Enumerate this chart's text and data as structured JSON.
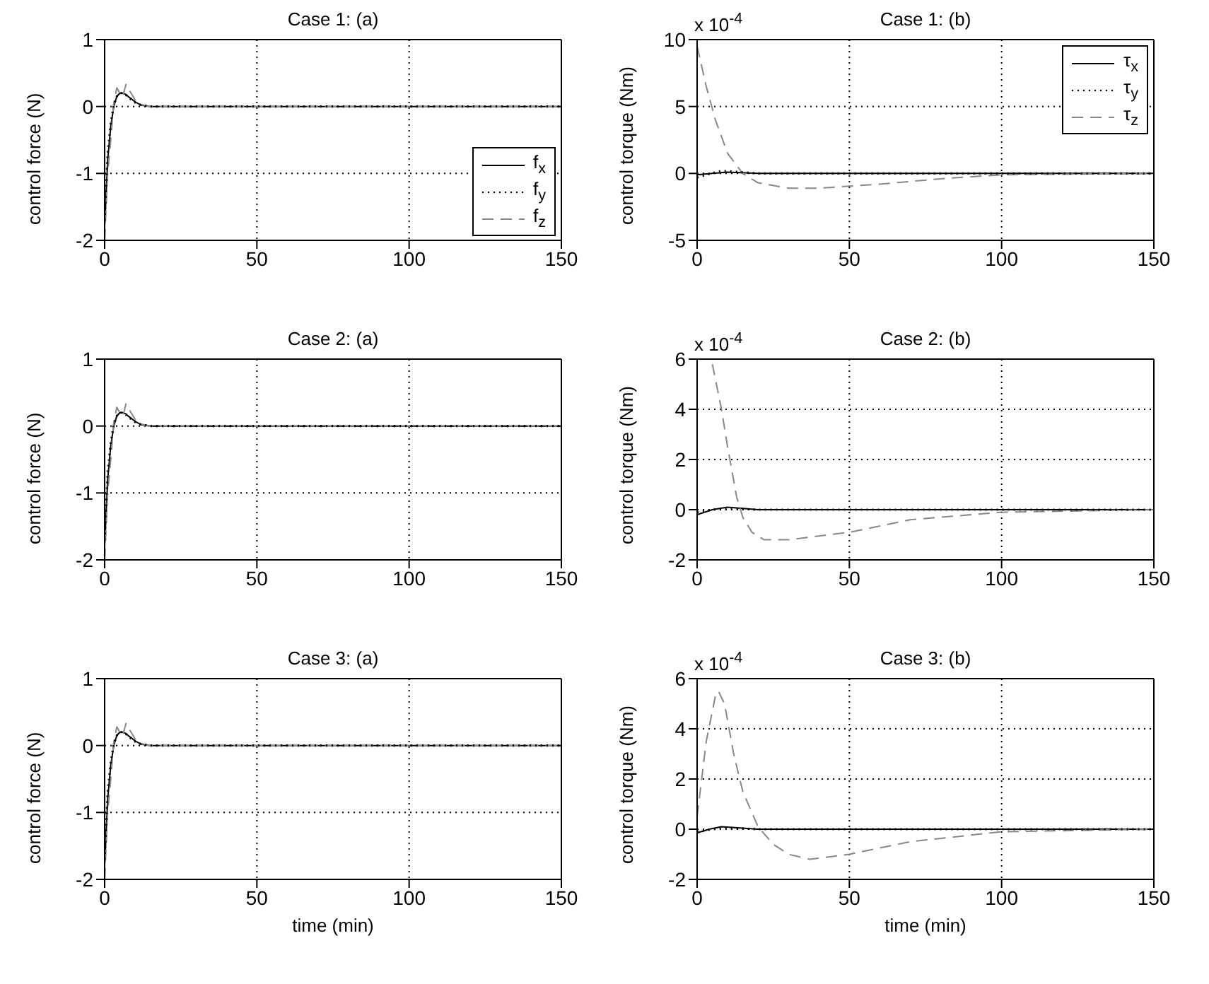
{
  "chart_data": [
    {
      "type": "line",
      "title": "Case 1: (a)",
      "ylabel": "control force (N)",
      "xlim": [
        0,
        150
      ],
      "xticks": [
        0,
        50,
        100,
        150
      ],
      "ylim": [
        -2,
        1
      ],
      "yticks": [
        -2,
        -1,
        0,
        1
      ],
      "grid": true,
      "legend": "right",
      "marker": "none",
      "series": [
        {
          "name": "f$_{x}$",
          "color": "#000000",
          "line_style": "solid",
          "x": [
            0,
            1,
            2,
            3,
            4,
            5,
            6,
            7,
            8,
            10,
            12,
            15,
            20,
            30,
            150
          ],
          "values": [
            -1.8,
            -0.8,
            -0.3,
            0,
            0.15,
            0.2,
            0.2,
            0.18,
            0.14,
            0.07,
            0.02,
            0,
            0,
            0,
            0
          ]
        },
        {
          "name": "f$_{y}$",
          "color": "#000000",
          "line_style": "dotted",
          "x": [
            0,
            1,
            2,
            3,
            4,
            5,
            6,
            7,
            8,
            10,
            12,
            15,
            20,
            30,
            150
          ],
          "values": [
            -1.7,
            -0.7,
            -0.25,
            0.02,
            0.15,
            0.2,
            0.2,
            0.17,
            0.13,
            0.06,
            0.02,
            0,
            0,
            0,
            0
          ]
        },
        {
          "name": "f$_{z}$",
          "color": "#888888",
          "line_style": "dashed",
          "x": [
            0,
            1,
            2,
            3,
            4,
            5,
            6,
            7,
            8,
            10,
            12,
            15,
            20,
            30,
            150
          ],
          "values": [
            -2,
            -1,
            -0.5,
            0.05,
            0.28,
            0.2,
            0.15,
            0.33,
            0.25,
            0.1,
            0.03,
            0,
            0,
            0,
            0
          ]
        }
      ]
    },
    {
      "type": "line",
      "title": "Case 1: (b)",
      "ylabel": "control torque (Nm)",
      "annotations": [
        "x 10$^{-4}$"
      ],
      "xlim": [
        0,
        150
      ],
      "xticks": [
        0,
        50,
        100,
        150
      ],
      "ylim": [
        -5,
        10
      ],
      "yticks": [
        -5,
        0,
        5,
        10
      ],
      "grid": true,
      "legend": "top right",
      "marker": "none",
      "series": [
        {
          "name": "τ$_{x}$",
          "color": "#000000",
          "line_style": "solid",
          "x": [
            0,
            5,
            10,
            20,
            150
          ],
          "values": [
            -0.1,
            0,
            0.1,
            0,
            0
          ]
        },
        {
          "name": "τ$_{y}$",
          "color": "#000000",
          "line_style": "dotted",
          "x": [
            0,
            8,
            20,
            150
          ],
          "values": [
            -0.3,
            0.2,
            0,
            0
          ]
        },
        {
          "name": "τ$_{z}$",
          "color": "#888888",
          "line_style": "dashed",
          "x": [
            0,
            3,
            6,
            10,
            15,
            20,
            30,
            40,
            60,
            80,
            100,
            150
          ],
          "values": [
            9.5,
            6.5,
            4,
            1.5,
            0,
            -0.7,
            -1.1,
            -1.1,
            -0.8,
            -0.4,
            -0.1,
            0
          ]
        }
      ]
    },
    {
      "type": "line",
      "title": "Case 2: (a)",
      "ylabel": "control force (N)",
      "xlim": [
        0,
        150
      ],
      "xticks": [
        0,
        50,
        100,
        150
      ],
      "ylim": [
        -2,
        1
      ],
      "yticks": [
        -2,
        -1,
        0,
        1
      ],
      "grid": true,
      "marker": "none",
      "series": [
        {
          "color": "#000000",
          "line_style": "solid",
          "x": [
            0,
            1,
            2,
            3,
            4,
            5,
            6,
            7,
            8,
            10,
            12,
            15,
            20,
            30,
            150
          ],
          "values": [
            -1.8,
            -0.8,
            -0.3,
            0,
            0.15,
            0.2,
            0.2,
            0.18,
            0.14,
            0.07,
            0.02,
            0,
            0,
            0,
            0
          ]
        },
        {
          "color": "#000000",
          "line_style": "dotted",
          "x": [
            0,
            1,
            2,
            3,
            4,
            5,
            6,
            7,
            8,
            10,
            12,
            15,
            20,
            30,
            150
          ],
          "values": [
            -1.7,
            -0.7,
            -0.25,
            0.02,
            0.15,
            0.2,
            0.2,
            0.17,
            0.13,
            0.06,
            0.02,
            0,
            0,
            0,
            0
          ]
        },
        {
          "color": "#888888",
          "line_style": "dashed",
          "x": [
            0,
            1,
            2,
            3,
            4,
            5,
            6,
            7,
            8,
            10,
            12,
            15,
            20,
            30,
            150
          ],
          "values": [
            -2,
            -1,
            -0.5,
            0.05,
            0.28,
            0.2,
            0.15,
            0.33,
            0.25,
            0.1,
            0.03,
            0,
            0,
            0,
            0
          ]
        }
      ]
    },
    {
      "type": "line",
      "title": "Case 2: (b)",
      "ylabel": "control torque (Nm)",
      "annotations": [
        "x 10$^{-4}$"
      ],
      "xlim": [
        0,
        150
      ],
      "xticks": [
        0,
        50,
        100,
        150
      ],
      "ylim": [
        -2,
        6
      ],
      "yticks": [
        -2,
        0,
        2,
        4,
        6
      ],
      "grid": true,
      "marker": "none",
      "series": [
        {
          "color": "#000000",
          "line_style": "solid",
          "x": [
            0,
            5,
            10,
            15,
            20,
            150
          ],
          "values": [
            -0.2,
            0,
            0.1,
            0.05,
            0,
            0
          ]
        },
        {
          "color": "#000000",
          "line_style": "dotted",
          "x": [
            0,
            5,
            10,
            20,
            150
          ],
          "values": [
            -0.1,
            0,
            0.05,
            0,
            0
          ]
        },
        {
          "color": "#888888",
          "line_style": "dashed",
          "x": [
            5,
            8,
            10,
            13,
            15,
            18,
            22,
            30,
            50,
            70,
            100,
            150
          ],
          "values": [
            5.8,
            4,
            2.5,
            0.5,
            -0.3,
            -0.9,
            -1.2,
            -1.2,
            -0.9,
            -0.4,
            -0.1,
            0
          ]
        }
      ]
    },
    {
      "type": "line",
      "title": "Case 3: (a)",
      "ylabel": "control force (N)",
      "xlabel": "time (min)",
      "xlim": [
        0,
        150
      ],
      "xticks": [
        0,
        50,
        100,
        150
      ],
      "ylim": [
        -2,
        1
      ],
      "yticks": [
        -2,
        -1,
        0,
        1
      ],
      "grid": true,
      "marker": "none",
      "series": [
        {
          "color": "#000000",
          "line_style": "solid",
          "x": [
            0,
            1,
            2,
            3,
            4,
            5,
            6,
            7,
            8,
            10,
            12,
            15,
            20,
            30,
            150
          ],
          "values": [
            -1.8,
            -0.8,
            -0.3,
            0,
            0.15,
            0.2,
            0.2,
            0.18,
            0.14,
            0.07,
            0.02,
            0,
            0,
            0,
            0
          ]
        },
        {
          "color": "#000000",
          "line_style": "dotted",
          "x": [
            0,
            1,
            2,
            3,
            4,
            5,
            6,
            7,
            8,
            10,
            12,
            15,
            20,
            30,
            150
          ],
          "values": [
            -1.7,
            -0.7,
            -0.25,
            0.02,
            0.15,
            0.2,
            0.2,
            0.17,
            0.13,
            0.06,
            0.02,
            0,
            0,
            0,
            0
          ]
        },
        {
          "color": "#888888",
          "line_style": "dashed",
          "x": [
            0,
            1,
            2,
            3,
            4,
            5,
            6,
            7,
            8,
            10,
            12,
            15,
            20,
            30,
            150
          ],
          "values": [
            -2,
            -1,
            -0.5,
            0.05,
            0.28,
            0.2,
            0.15,
            0.33,
            0.25,
            0.1,
            0.03,
            0,
            0,
            0,
            0
          ]
        }
      ]
    },
    {
      "type": "line",
      "title": "Case 3: (b)",
      "ylabel": "control torque (Nm)",
      "xlabel": "time (min)",
      "annotations": [
        "x 10$^{-4}$"
      ],
      "xlim": [
        0,
        150
      ],
      "xticks": [
        0,
        50,
        100,
        150
      ],
      "ylim": [
        -2,
        6
      ],
      "yticks": [
        -2,
        0,
        2,
        4,
        6
      ],
      "grid": true,
      "marker": "none",
      "series": [
        {
          "color": "#000000",
          "line_style": "solid",
          "x": [
            0,
            4,
            8,
            14,
            20,
            150
          ],
          "values": [
            -0.15,
            0,
            0.1,
            0.05,
            0,
            0
          ]
        },
        {
          "color": "#000000",
          "line_style": "dotted",
          "x": [
            0,
            5,
            10,
            20,
            150
          ],
          "values": [
            -0.1,
            0,
            0.05,
            0,
            0
          ]
        },
        {
          "color": "#888888",
          "line_style": "dashed",
          "x": [
            0,
            3,
            6,
            7,
            9,
            12,
            15,
            20,
            25,
            30,
            37,
            50,
            70,
            100,
            150
          ],
          "values": [
            0.5,
            3.5,
            5.3,
            5.5,
            5,
            3,
            1.5,
            0.1,
            -0.6,
            -1,
            -1.2,
            -1,
            -0.5,
            -0.1,
            0
          ]
        }
      ]
    }
  ]
}
